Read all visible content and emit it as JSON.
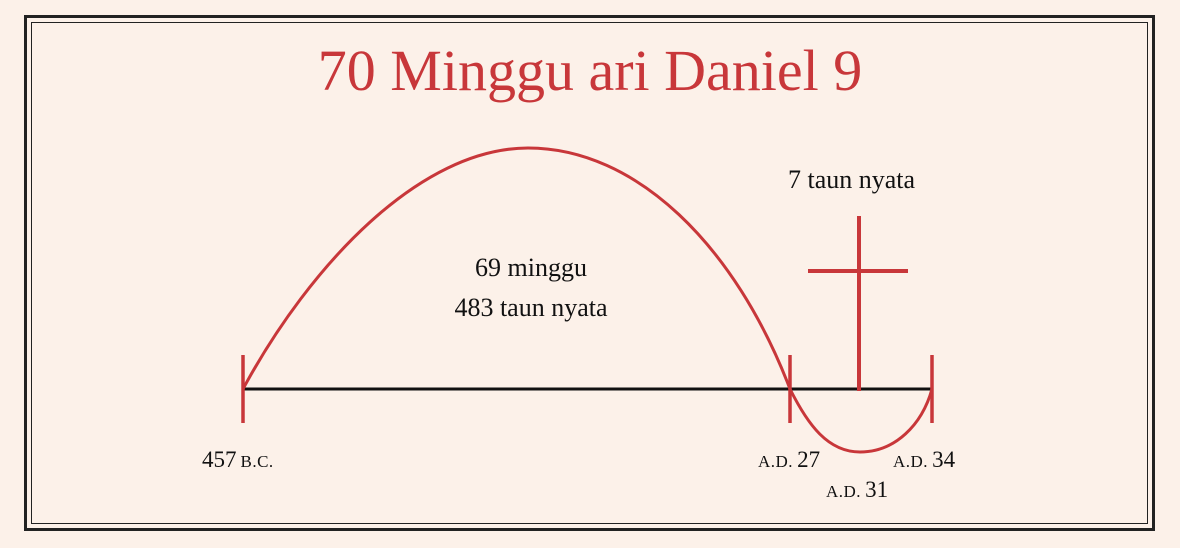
{
  "title": "70 Minggu ari Daniel 9",
  "labels": {
    "period_main_weeks": "69 minggu",
    "period_main_years": "483 taun nyata",
    "period_last": "7 taun nyata"
  },
  "dates": {
    "start": {
      "number": "457",
      "era": "B.C."
    },
    "baptism": {
      "era": "A.D.",
      "number": "27"
    },
    "cross": {
      "era": "A.D.",
      "number": "31"
    },
    "end": {
      "era": "A.D.",
      "number": "34"
    }
  },
  "colors": {
    "accent": "#c8373a",
    "line": "#111111",
    "background": "#fcf1e9"
  },
  "icons": {
    "cross": "cross-icon"
  }
}
